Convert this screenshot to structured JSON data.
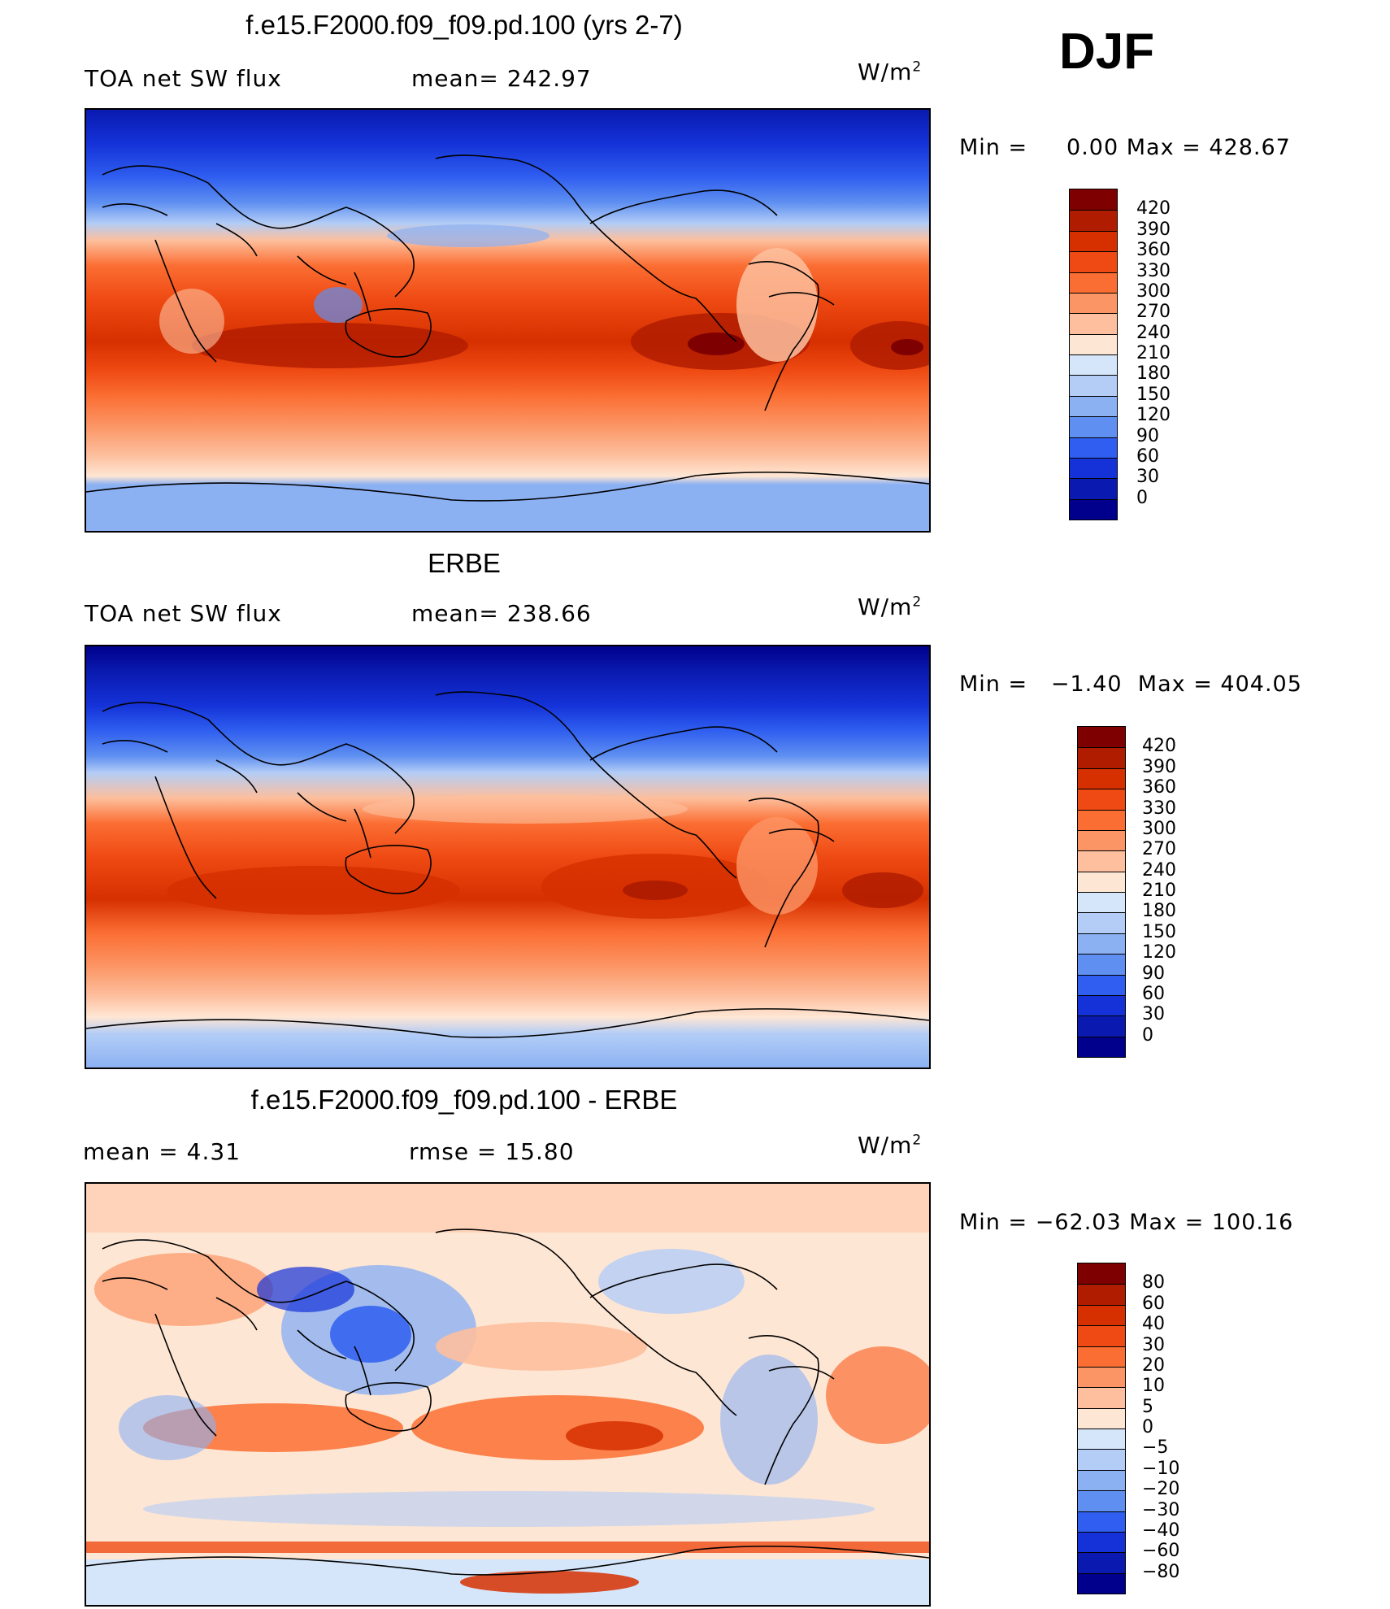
{
  "season": "DJF",
  "panels": [
    {
      "title": "f.e15.F2000.f09_f09.pd.100 (yrs 2-7)",
      "left_label": "TOA net SW flux",
      "center_label": "mean= 242.97",
      "units_base": "W/m",
      "units_exp": "2",
      "min_label": "Min =",
      "min_value": "0.00",
      "max_label": "Max =",
      "max_value": "428.67",
      "colorbar": {
        "ticks": [
          "420",
          "390",
          "360",
          "330",
          "300",
          "270",
          "240",
          "210",
          "180",
          "150",
          "120",
          "90",
          "60",
          "30",
          "0"
        ],
        "colors": [
          "#7f0000",
          "#b01c00",
          "#d63000",
          "#ef4a13",
          "#fb6e33",
          "#fc9565",
          "#fdbf9d",
          "#fee6d4",
          "#d5e6fa",
          "#b3cdf6",
          "#8cb1f3",
          "#5e8ff1",
          "#2f5ef0",
          "#1432d8",
          "#0a1ab0",
          "#00008c"
        ]
      }
    },
    {
      "title": "ERBE",
      "left_label": "TOA net SW flux",
      "center_label": "mean= 238.66",
      "units_base": "W/m",
      "units_exp": "2",
      "min_label": "Min =",
      "min_value": "−1.40",
      "max_label": "Max =",
      "max_value": "404.05",
      "colorbar": {
        "ticks": [
          "420",
          "390",
          "360",
          "330",
          "300",
          "270",
          "240",
          "210",
          "180",
          "150",
          "120",
          "90",
          "60",
          "30",
          "0"
        ],
        "colors": [
          "#7f0000",
          "#b01c00",
          "#d63000",
          "#ef4a13",
          "#fb6e33",
          "#fc9565",
          "#fdbf9d",
          "#fee6d4",
          "#d5e6fa",
          "#b3cdf6",
          "#8cb1f3",
          "#5e8ff1",
          "#2f5ef0",
          "#1432d8",
          "#0a1ab0",
          "#00008c"
        ]
      }
    },
    {
      "title": "f.e15.F2000.f09_f09.pd.100 - ERBE",
      "left_label": "mean =    4.31",
      "center_label": "rmse =   15.80",
      "units_base": "W/m",
      "units_exp": "2",
      "min_label": "Min =",
      "min_value": "−62.03",
      "max_label": "Max =",
      "max_value": "100.16",
      "colorbar": {
        "ticks": [
          "80",
          "60",
          "40",
          "30",
          "20",
          "10",
          "5",
          "0",
          "−5",
          "−10",
          "−20",
          "−30",
          "−40",
          "−60",
          "−80"
        ],
        "colors": [
          "#7f0000",
          "#b01c00",
          "#d63000",
          "#ef4a13",
          "#fb6e33",
          "#fc9565",
          "#fdbf9d",
          "#fee6d4",
          "#d5e6fa",
          "#b3cdf6",
          "#8cb1f3",
          "#5e8ff1",
          "#2f5ef0",
          "#1432d8",
          "#0a1ab0",
          "#00008c"
        ]
      }
    }
  ]
}
